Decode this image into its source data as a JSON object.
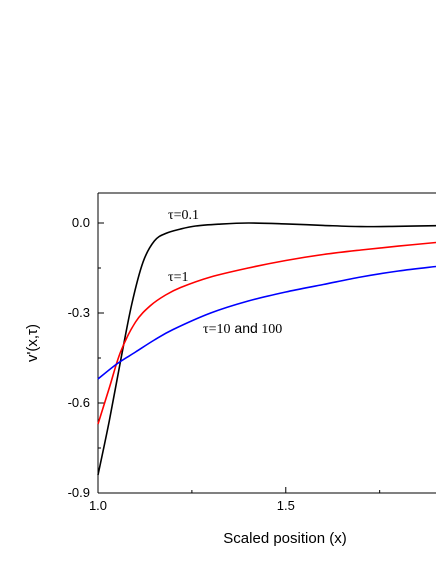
{
  "chart_data": {
    "type": "line",
    "title": "",
    "xlabel": "Scaled position (x)",
    "ylabel": "v'(x,τ)",
    "xlim": [
      1.0,
      1.9
    ],
    "ylim": [
      -0.9,
      0.1
    ],
    "x_ticks": [
      1.0,
      1.5
    ],
    "x_tick_labels": [
      "1.0",
      "1.5"
    ],
    "y_ticks": [
      0.0,
      -0.3,
      -0.6,
      -0.9
    ],
    "y_tick_labels": [
      "0.0",
      "-0.3",
      "-0.6",
      "-0.9"
    ],
    "grid": false,
    "legend": "none",
    "series": [
      {
        "name": "τ=0.1",
        "color": "#000000",
        "x": [
          1.0,
          1.03,
          1.06,
          1.09,
          1.12,
          1.15,
          1.18,
          1.22,
          1.26,
          1.32,
          1.4,
          1.5,
          1.6,
          1.7,
          1.8,
          1.9
        ],
        "y": [
          -0.84,
          -0.66,
          -0.46,
          -0.27,
          -0.13,
          -0.06,
          -0.035,
          -0.02,
          -0.01,
          -0.004,
          0.0,
          -0.003,
          -0.008,
          -0.012,
          -0.011,
          -0.009
        ]
      },
      {
        "name": "τ=1",
        "color": "#ff0000",
        "x": [
          1.0,
          1.03,
          1.06,
          1.1,
          1.14,
          1.18,
          1.22,
          1.3,
          1.4,
          1.5,
          1.6,
          1.7,
          1.8,
          1.9
        ],
        "y": [
          -0.67,
          -0.55,
          -0.43,
          -0.33,
          -0.275,
          -0.24,
          -0.215,
          -0.18,
          -0.15,
          -0.125,
          -0.105,
          -0.09,
          -0.077,
          -0.065
        ]
      },
      {
        "name": "τ=10 and 100",
        "color": "#0000ff",
        "x": [
          1.0,
          1.05,
          1.1,
          1.15,
          1.2,
          1.3,
          1.4,
          1.5,
          1.6,
          1.7,
          1.8,
          1.9
        ],
        "y": [
          -0.52,
          -0.47,
          -0.43,
          -0.39,
          -0.355,
          -0.3,
          -0.26,
          -0.23,
          -0.205,
          -0.18,
          -0.16,
          -0.145
        ]
      }
    ],
    "annotations": [
      {
        "prefix": "τ=0.1",
        "suffix": "",
        "series": 0
      },
      {
        "prefix": "τ=1",
        "suffix": "",
        "series": 1
      },
      {
        "prefix": "τ=10",
        "suffix": " 100",
        "and_word": " and",
        "series": 2
      }
    ]
  }
}
